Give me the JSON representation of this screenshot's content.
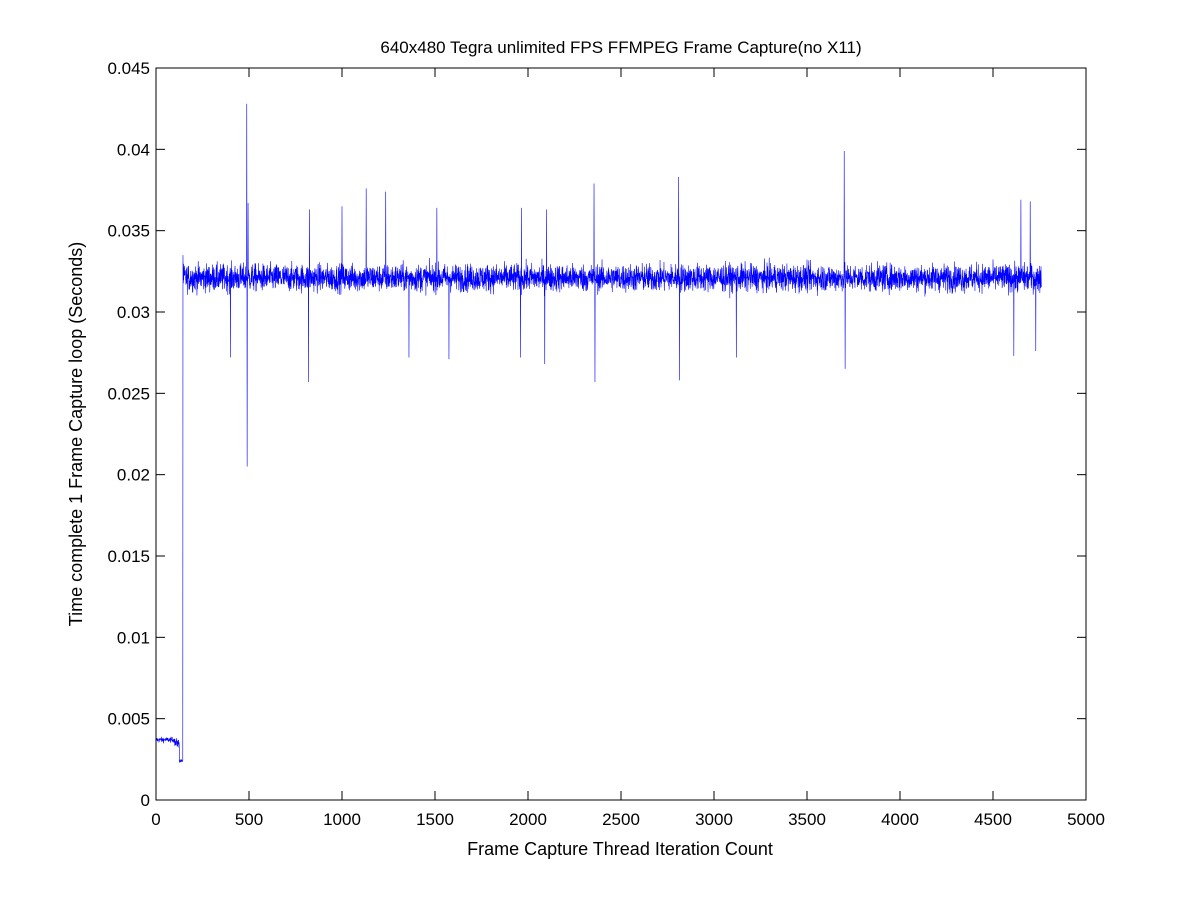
{
  "chart_data": {
    "type": "line",
    "title": "640x480 Tegra unlimited FPS FFMPEG Frame Capture(no X11)",
    "xlabel": "Frame Capture Thread Iteration Count",
    "ylabel": "Time complete 1 Frame Capture loop (Seconds)",
    "xlim": [
      0,
      5000
    ],
    "ylim": [
      0,
      0.045
    ],
    "xticks": [
      0,
      500,
      1000,
      1500,
      2000,
      2500,
      3000,
      3500,
      4000,
      4500,
      5000
    ],
    "xtick_labels": [
      "0",
      "500",
      "1000",
      "1500",
      "2000",
      "2500",
      "3000",
      "3500",
      "4000",
      "4500",
      "5000"
    ],
    "yticks": [
      0,
      0.005,
      0.01,
      0.015,
      0.02,
      0.025,
      0.03,
      0.035,
      0.04,
      0.045
    ],
    "ytick_labels": [
      "0",
      "0.005",
      "0.01",
      "0.015",
      "0.02",
      "0.025",
      "0.03",
      "0.035",
      "0.04",
      "0.045"
    ],
    "grid": false,
    "line_color": "#0000ff",
    "series": [
      {
        "x_start": 1,
        "x_end": 4760,
        "segments": [
          {
            "x_from": 1,
            "x_to": 100,
            "mean": 0.0037,
            "spread": 0.0003
          },
          {
            "x_from": 100,
            "x_to": 125,
            "mean": 0.0035,
            "spread": 0.0005
          },
          {
            "x_from": 125,
            "x_to": 145,
            "mean": 0.0024,
            "spread": 0.0002
          },
          {
            "x_from": 146,
            "x_to": 4760,
            "mean": 0.0321,
            "spread": 0.0015
          }
        ],
        "spikes": [
          {
            "x": 145,
            "y": 0.0335
          },
          {
            "x": 400,
            "y": 0.0272
          },
          {
            "x": 488,
            "y": 0.0428
          },
          {
            "x": 490,
            "y": 0.0205
          },
          {
            "x": 495,
            "y": 0.0367
          },
          {
            "x": 820,
            "y": 0.0257
          },
          {
            "x": 825,
            "y": 0.0363
          },
          {
            "x": 1000,
            "y": 0.0365
          },
          {
            "x": 1130,
            "y": 0.0376
          },
          {
            "x": 1235,
            "y": 0.0374
          },
          {
            "x": 1360,
            "y": 0.0272
          },
          {
            "x": 1510,
            "y": 0.0364
          },
          {
            "x": 1575,
            "y": 0.0271
          },
          {
            "x": 1960,
            "y": 0.0272
          },
          {
            "x": 1965,
            "y": 0.0364
          },
          {
            "x": 2090,
            "y": 0.0268
          },
          {
            "x": 2100,
            "y": 0.0363
          },
          {
            "x": 2355,
            "y": 0.0379
          },
          {
            "x": 2360,
            "y": 0.0257
          },
          {
            "x": 2810,
            "y": 0.0383
          },
          {
            "x": 2815,
            "y": 0.0258
          },
          {
            "x": 3120,
            "y": 0.0272
          },
          {
            "x": 3700,
            "y": 0.0399
          },
          {
            "x": 3705,
            "y": 0.0265
          },
          {
            "x": 4650,
            "y": 0.0369
          },
          {
            "x": 4612,
            "y": 0.0273
          },
          {
            "x": 4700,
            "y": 0.0368
          },
          {
            "x": 4730,
            "y": 0.0276
          }
        ]
      }
    ]
  }
}
